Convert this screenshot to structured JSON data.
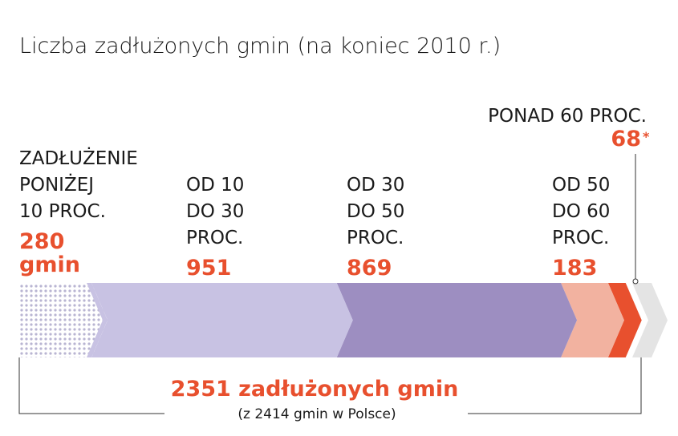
{
  "chart_data": {
    "type": "bar",
    "title": "Liczba zadłużonych gmin (na koniec 2010 r.)",
    "categories": [
      [
        "ZADŁUŻENIE",
        "PONIŻEJ",
        "10 PROC."
      ],
      [
        "OD 10",
        "DO 30",
        "PROC."
      ],
      [
        "OD 30",
        "DO 50",
        "PROC."
      ],
      [
        "OD 50",
        "DO 60",
        "PROC."
      ],
      [
        "PONAD 60 PROC."
      ]
    ],
    "values": [
      280,
      951,
      869,
      183,
      68
    ],
    "value_labels": [
      [
        "280",
        "gmin"
      ],
      [
        "951"
      ],
      [
        "869"
      ],
      [
        "183"
      ],
      [
        "68"
      ]
    ],
    "value_marker": "*",
    "total_label": "2351 zadłużonych gmin",
    "total_sublabel": "(z 2414 gmin w Polsce)",
    "total_all": 2414,
    "colors": [
      "#b9b5d2",
      "#c8c2e3",
      "#9d8ec1",
      "#f2b2a0",
      "#e8502e",
      "#e4e4e4"
    ]
  }
}
